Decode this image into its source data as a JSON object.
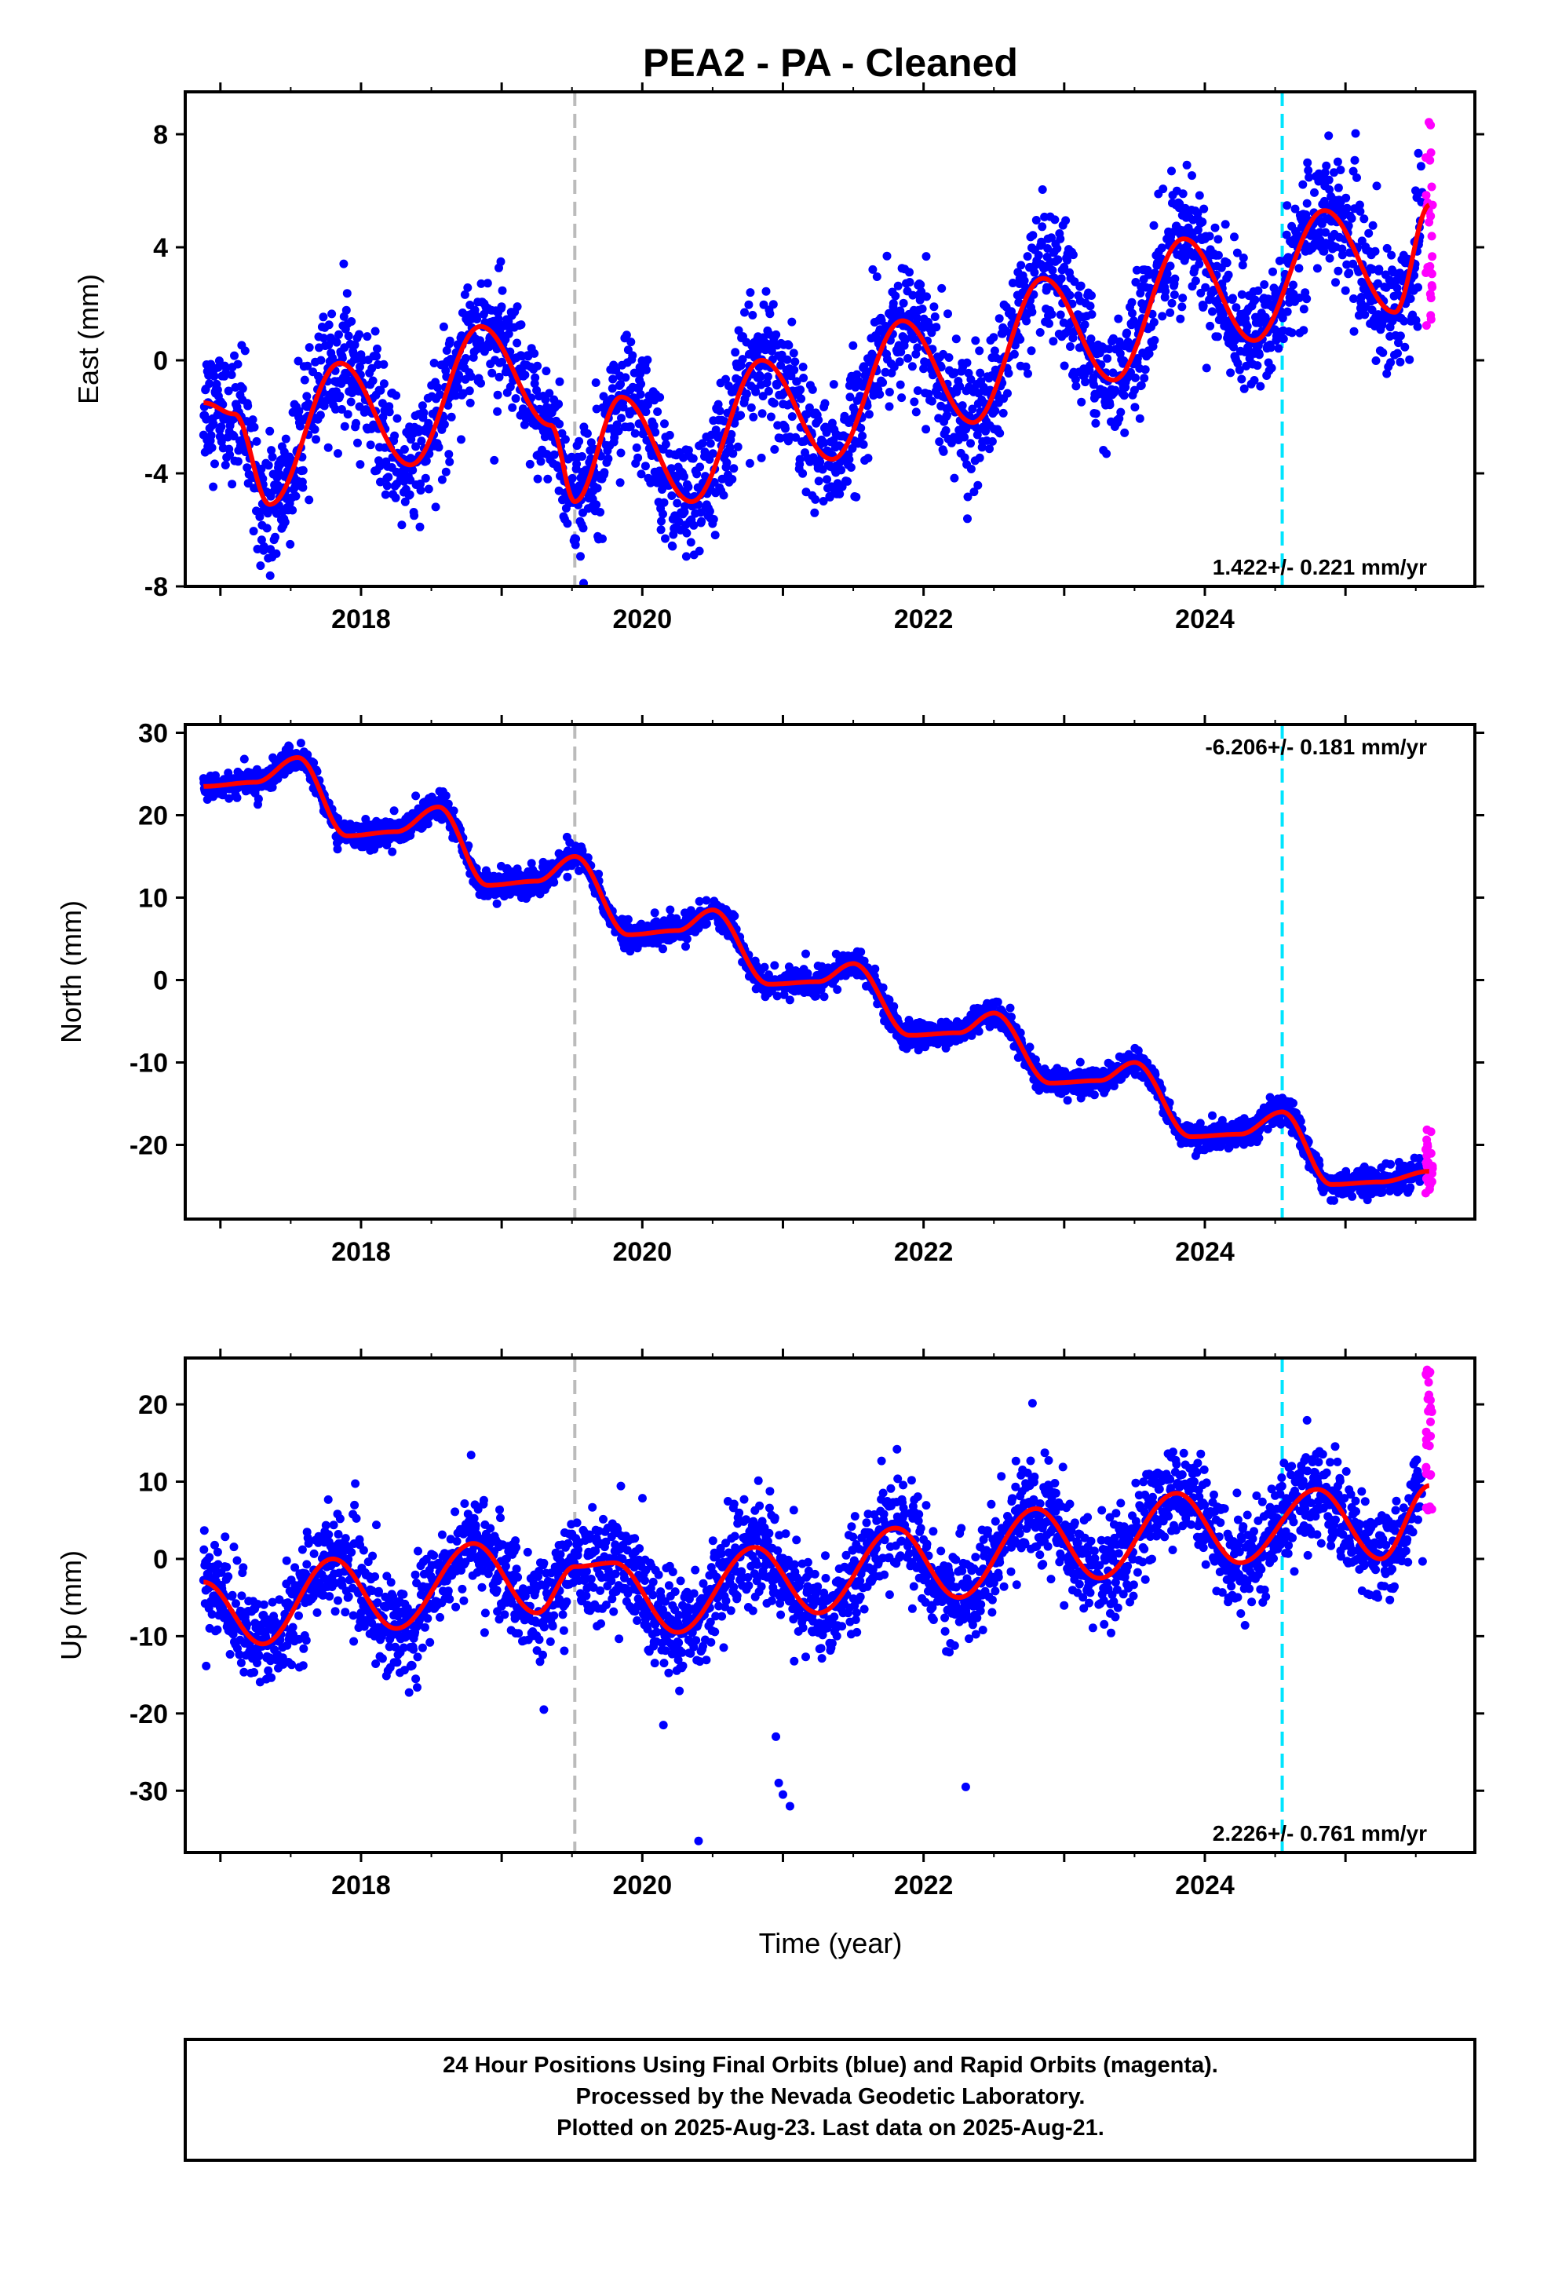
{
  "chart_data": {
    "type": "scatter",
    "title": "PEA2  - PA - Cleaned",
    "xlabel": "Time (year)",
    "xlim": [
      2016.75,
      2025.92
    ],
    "x_ticks": [
      "2018",
      "2020",
      "2022",
      "2024"
    ],
    "grey_dashed_line_x": 2019.52,
    "cyan_dashed_line_x": 2024.55,
    "colors": {
      "final_orbits": "#0000ff",
      "rapid_orbits": "#ff00ff",
      "model_fit": "#ff0000",
      "grey_line": "#bbbbbb",
      "cyan_line": "#00e5ff"
    },
    "panels": [
      {
        "name": "east",
        "ylabel": "East (mm)",
        "ylim": [
          -8,
          9.5
        ],
        "y_ticks": [
          "8",
          "4",
          "0",
          "-4",
          "-8"
        ],
        "y_tick_values": [
          8,
          4,
          0,
          -4,
          -8
        ],
        "rate_label": "1.422+/- 0.221 mm/yr",
        "rate_position": "bottom-right",
        "model": {
          "start_value": -1.5,
          "rate": 1.422,
          "seasonal_amplitude": 2.6,
          "seasonal_phase_year": 2017.87,
          "offset_at": 2019.52,
          "offset": 2.6
        },
        "scatter_noise": 1.1,
        "rapid_range": [
          1.2,
          9.1
        ],
        "model_fit": [
          {
            "x": 2016.88,
            "y": -1.5
          },
          {
            "x": 2017.1,
            "y": -1.9
          },
          {
            "x": 2017.35,
            "y": -5.1
          },
          {
            "x": 2017.85,
            "y": -0.1
          },
          {
            "x": 2018.35,
            "y": -3.7
          },
          {
            "x": 2018.85,
            "y": 1.2
          },
          {
            "x": 2019.35,
            "y": -2.3
          },
          {
            "x": 2019.52,
            "y": -5.0
          },
          {
            "x": 2019.85,
            "y": -1.3
          },
          {
            "x": 2020.35,
            "y": -5.0
          },
          {
            "x": 2020.85,
            "y": 0.0
          },
          {
            "x": 2021.35,
            "y": -3.5
          },
          {
            "x": 2021.85,
            "y": 1.4
          },
          {
            "x": 2022.35,
            "y": -2.2
          },
          {
            "x": 2022.85,
            "y": 2.9
          },
          {
            "x": 2023.35,
            "y": -0.7
          },
          {
            "x": 2023.85,
            "y": 4.3
          },
          {
            "x": 2024.35,
            "y": 0.7
          },
          {
            "x": 2024.85,
            "y": 5.3
          },
          {
            "x": 2025.35,
            "y": 1.7
          },
          {
            "x": 2025.6,
            "y": 5.5
          }
        ]
      },
      {
        "name": "north",
        "ylabel": "North (mm)",
        "ylim": [
          -29,
          31
        ],
        "y_ticks": [
          "30",
          "20",
          "10",
          "0",
          "-10",
          "-20"
        ],
        "y_tick_values": [
          30,
          20,
          10,
          0,
          -10,
          -20
        ],
        "rate_label": "-6.206+/- 0.181 mm/yr",
        "rate_position": "top-right",
        "model": {
          "start_value": 23.5,
          "rate": -6.206,
          "seasonal_amplitude": 3.2,
          "seasonal_phase_year": 2017.5,
          "offset_at": 2019.52,
          "offset": 0
        },
        "scatter_noise": 0.8,
        "rapid_range": [
          -26,
          -18
        ],
        "model_fit": [
          {
            "x": 2016.88,
            "y": 23.5
          },
          {
            "x": 2017.25,
            "y": 24.0
          },
          {
            "x": 2017.55,
            "y": 27.0
          },
          {
            "x": 2017.9,
            "y": 17.5
          },
          {
            "x": 2018.25,
            "y": 18.0
          },
          {
            "x": 2018.55,
            "y": 21.0
          },
          {
            "x": 2018.9,
            "y": 11.5
          },
          {
            "x": 2019.25,
            "y": 12.0
          },
          {
            "x": 2019.52,
            "y": 15.0
          },
          {
            "x": 2019.9,
            "y": 5.5
          },
          {
            "x": 2020.25,
            "y": 6.0
          },
          {
            "x": 2020.5,
            "y": 8.5
          },
          {
            "x": 2020.9,
            "y": -0.5
          },
          {
            "x": 2021.25,
            "y": -0.2
          },
          {
            "x": 2021.5,
            "y": 2.0
          },
          {
            "x": 2021.9,
            "y": -6.7
          },
          {
            "x": 2022.25,
            "y": -6.4
          },
          {
            "x": 2022.5,
            "y": -4.0
          },
          {
            "x": 2022.9,
            "y": -12.5
          },
          {
            "x": 2023.25,
            "y": -12.2
          },
          {
            "x": 2023.5,
            "y": -10.0
          },
          {
            "x": 2023.9,
            "y": -19.0
          },
          {
            "x": 2024.25,
            "y": -18.7
          },
          {
            "x": 2024.55,
            "y": -16.0
          },
          {
            "x": 2024.9,
            "y": -24.8
          },
          {
            "x": 2025.25,
            "y": -24.5
          },
          {
            "x": 2025.6,
            "y": -23.2
          }
        ]
      },
      {
        "name": "up",
        "ylabel": "Up (mm)",
        "ylim": [
          -38,
          26
        ],
        "y_ticks": [
          "20",
          "10",
          "0",
          "-10",
          "-20",
          "-30"
        ],
        "y_tick_values": [
          20,
          10,
          0,
          -10,
          -20,
          -30
        ],
        "rate_label": "2.226+/- 0.761 mm/yr",
        "rate_position": "bottom-right",
        "model": {
          "start_value": -3.0,
          "rate": 2.226,
          "seasonal_amplitude": 5.5,
          "seasonal_phase_year": 2017.8,
          "offset_at": 2019.52,
          "offset": 0
        },
        "scatter_noise": 3.2,
        "rapid_range": [
          6,
          24.5
        ],
        "outliers": [
          {
            "x": 2020.4,
            "y": -36.5
          },
          {
            "x": 2020.95,
            "y": -23.0
          },
          {
            "x": 2020.97,
            "y": -29.0
          },
          {
            "x": 2021.05,
            "y": -32.0
          },
          {
            "x": 2021.0,
            "y": -30.5
          },
          {
            "x": 2022.3,
            "y": -29.5
          },
          {
            "x": 2019.3,
            "y": -19.5
          },
          {
            "x": 2020.15,
            "y": -21.5
          }
        ],
        "model_fit": [
          {
            "x": 2016.88,
            "y": -3.0
          },
          {
            "x": 2017.3,
            "y": -11.0
          },
          {
            "x": 2017.8,
            "y": 0.0
          },
          {
            "x": 2018.25,
            "y": -9.0
          },
          {
            "x": 2018.8,
            "y": 2.0
          },
          {
            "x": 2019.25,
            "y": -7.0
          },
          {
            "x": 2019.52,
            "y": -1.0
          },
          {
            "x": 2019.8,
            "y": -0.5
          },
          {
            "x": 2020.25,
            "y": -9.5
          },
          {
            "x": 2020.8,
            "y": 1.5
          },
          {
            "x": 2021.25,
            "y": -7.0
          },
          {
            "x": 2021.8,
            "y": 4.0
          },
          {
            "x": 2022.25,
            "y": -5.0
          },
          {
            "x": 2022.8,
            "y": 6.5
          },
          {
            "x": 2023.25,
            "y": -2.5
          },
          {
            "x": 2023.8,
            "y": 8.5
          },
          {
            "x": 2024.25,
            "y": -0.5
          },
          {
            "x": 2024.8,
            "y": 9.0
          },
          {
            "x": 2025.25,
            "y": 0.0
          },
          {
            "x": 2025.6,
            "y": 9.5
          }
        ]
      }
    ]
  },
  "notes": {
    "line1": "24 Hour Positions Using Final Orbits (blue) and Rapid Orbits (magenta).",
    "line2": "Processed by the Nevada Geodetic Laboratory.",
    "line3": "Plotted on 2025-Aug-23. Last data on 2025-Aug-21."
  }
}
